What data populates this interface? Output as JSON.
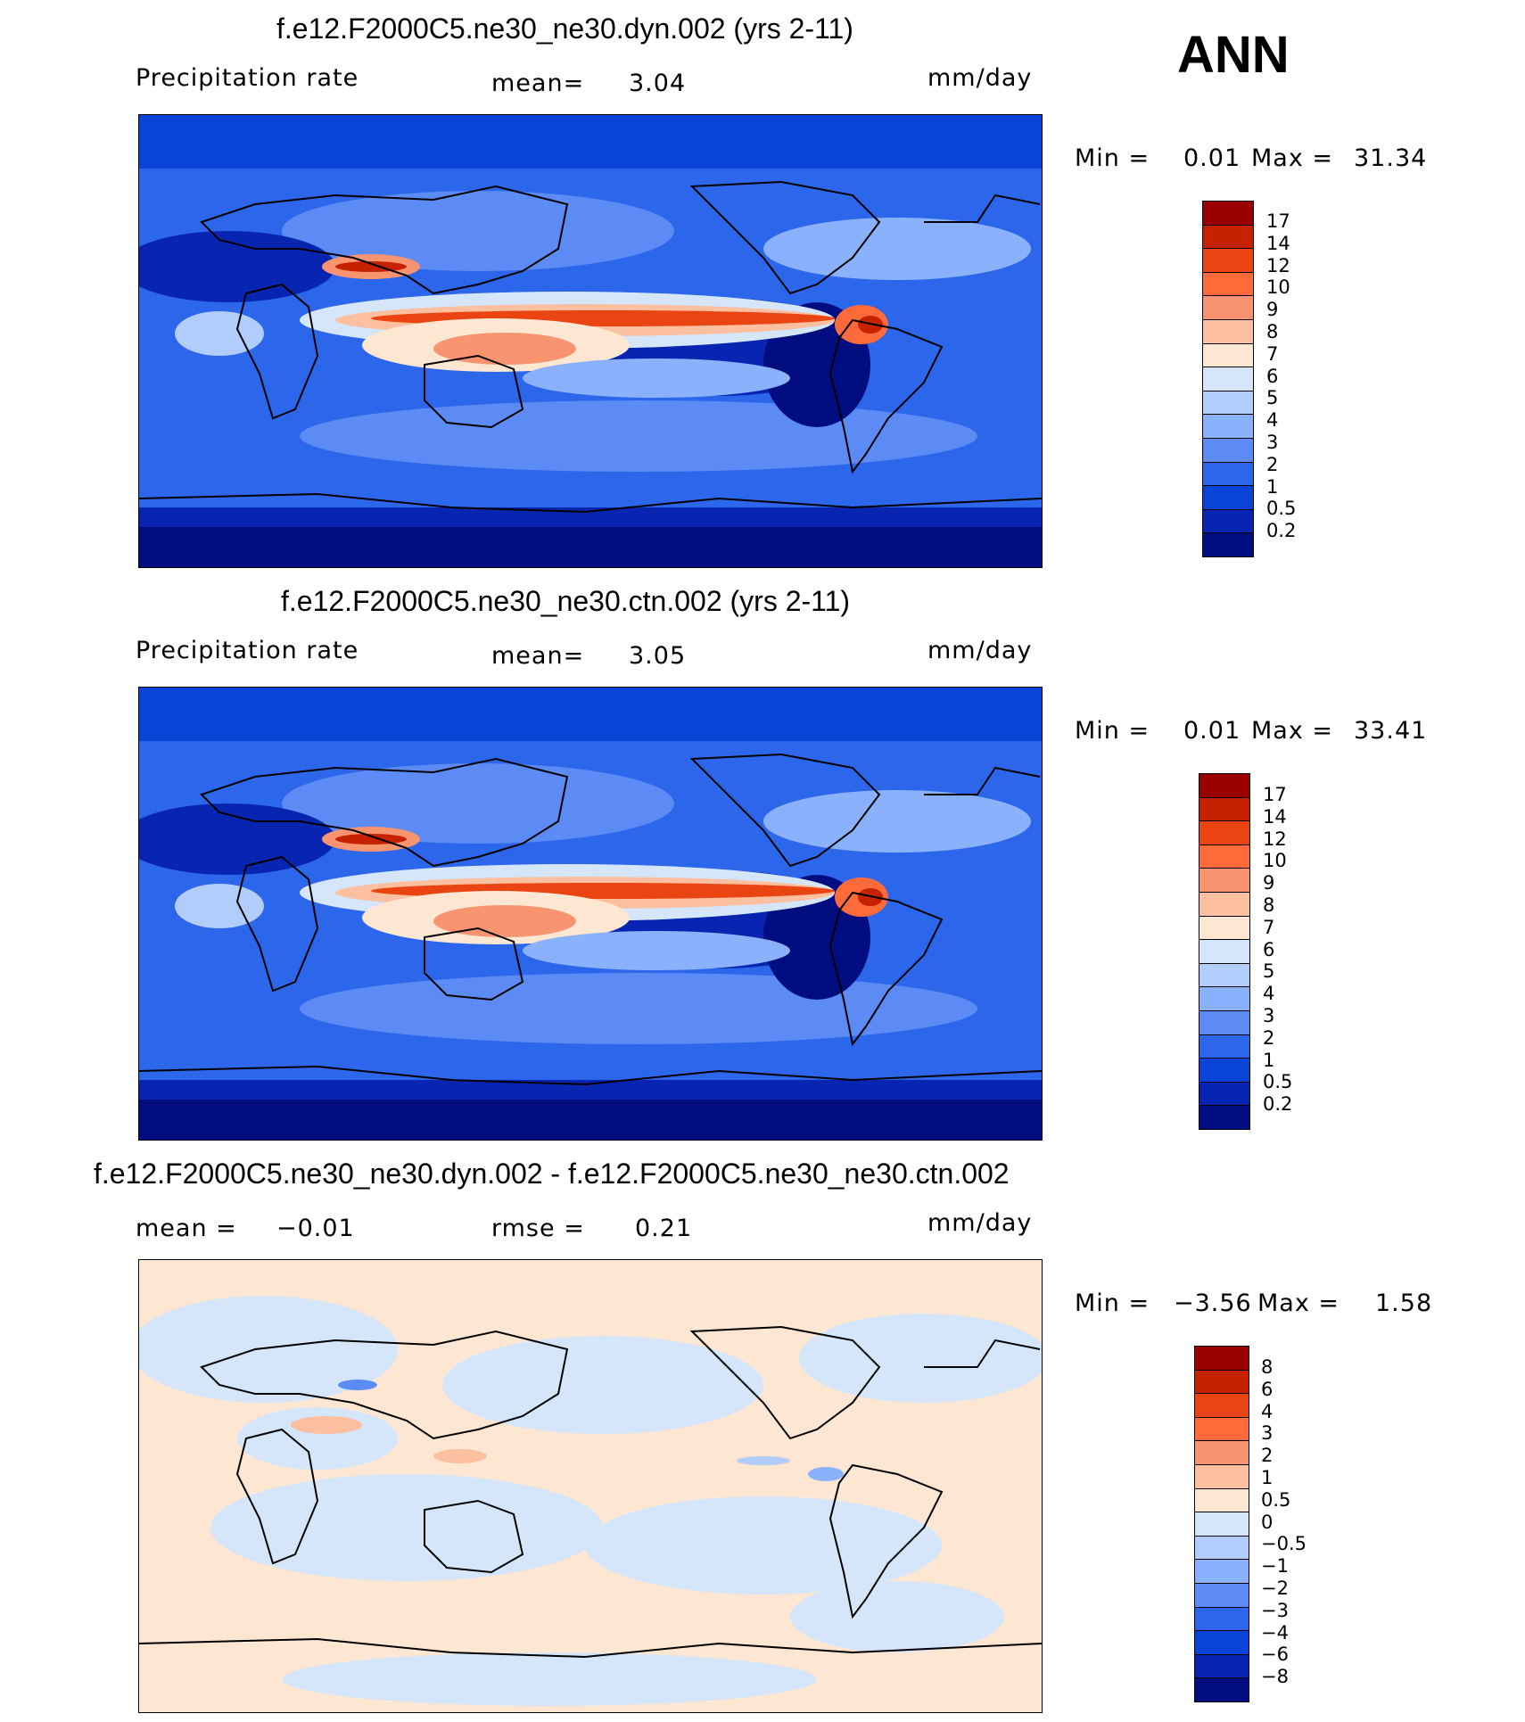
{
  "season": "ANN",
  "colors": {
    "abs_scale": [
      "#9b0000",
      "#c72200",
      "#e94411",
      "#ff6a3a",
      "#f99470",
      "#fcbfa0",
      "#fde6d2",
      "#d6e6fa",
      "#b1cdfb",
      "#8ab1fb",
      "#5c8bf5",
      "#2c66ea",
      "#0a44d6",
      "#0725b0",
      "#000d80"
    ],
    "diff_scale": [
      "#9b0000",
      "#c72200",
      "#e94411",
      "#ff6a3a",
      "#f99470",
      "#fcbfa0",
      "#fde6d2",
      "#d6e6fa",
      "#b1cdfb",
      "#8ab1fb",
      "#5c8bf5",
      "#2c66ea",
      "#0a44d6",
      "#0725b0",
      "#000d80"
    ]
  },
  "panels": [
    {
      "id": "dyn",
      "title": "f.e12.F2000C5.ne30_ne30.dyn.002 (yrs 2-11)",
      "left_label": "Precipitation rate",
      "mid_label": "mean=",
      "mid_value": "3.04",
      "units": "mm/day",
      "min_label": "Min =",
      "min_value": "0.01",
      "max_label": "Max =",
      "max_value": "31.34",
      "ticks": [
        "17",
        "14",
        "12",
        "10",
        "9",
        "8",
        "7",
        "6",
        "5",
        "4",
        "3",
        "2",
        "1",
        "0.5",
        "0.2"
      ]
    },
    {
      "id": "ctn",
      "title": "f.e12.F2000C5.ne30_ne30.ctn.002 (yrs 2-11)",
      "left_label": "Precipitation rate",
      "mid_label": "mean=",
      "mid_value": "3.05",
      "units": "mm/day",
      "min_label": "Min =",
      "min_value": "0.01",
      "max_label": "Max =",
      "max_value": "33.41",
      "ticks": [
        "17",
        "14",
        "12",
        "10",
        "9",
        "8",
        "7",
        "6",
        "5",
        "4",
        "3",
        "2",
        "1",
        "0.5",
        "0.2"
      ]
    },
    {
      "id": "diff",
      "title": "f.e12.F2000C5.ne30_ne30.dyn.002 - f.e12.F2000C5.ne30_ne30.ctn.002",
      "left_label": "mean =",
      "left_value": "−0.01",
      "mid_label": "rmse =",
      "mid_value": "0.21",
      "units": "mm/day",
      "min_label": "Min =",
      "min_value": "−3.56",
      "max_label": "Max =",
      "max_value": "1.58",
      "ticks": [
        "8",
        "6",
        "4",
        "3",
        "2",
        "1",
        "0.5",
        "0",
        "−0.5",
        "−1",
        "−2",
        "−3",
        "−4",
        "−6",
        "−8"
      ]
    }
  ]
}
